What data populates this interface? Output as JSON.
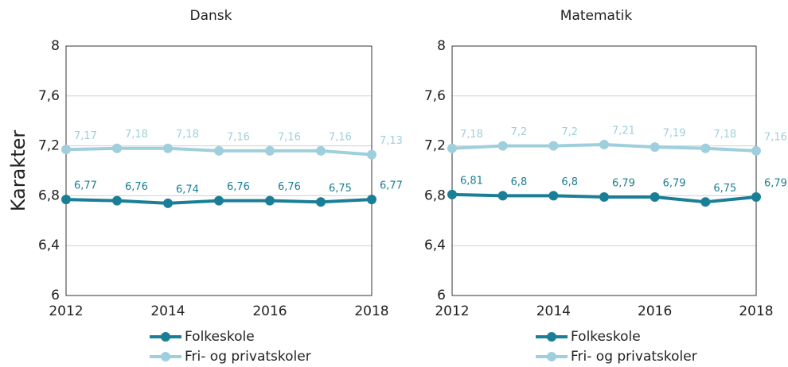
{
  "chart_data": [
    {
      "type": "line",
      "title": "Dansk",
      "ylabel": "Karakter",
      "x": [
        2012,
        2013,
        2014,
        2015,
        2016,
        2017,
        2018
      ],
      "xlim": [
        2012,
        2018
      ],
      "xticks": [
        2012,
        2014,
        2016,
        2018
      ],
      "ylim": [
        6,
        8
      ],
      "yticks": [
        6,
        {
          "value": 6.4,
          "label": "6,4"
        },
        {
          "value": 6.8,
          "label": "6,8"
        },
        {
          "value": 7.2,
          "label": "7,2"
        },
        {
          "value": 7.6,
          "label": "7,6"
        },
        8
      ],
      "grid": true,
      "series": [
        {
          "name": "Folkeskole",
          "color": "#1a7f96",
          "values": [
            6.77,
            6.76,
            6.74,
            6.76,
            6.76,
            6.75,
            6.77
          ],
          "value_labels": [
            "6,77",
            "6,76",
            "6,74",
            "6,76",
            "6,76",
            "6,75",
            "6,77"
          ]
        },
        {
          "name": "Fri- og privatskoler",
          "color": "#9fcfdc",
          "values": [
            7.17,
            7.18,
            7.18,
            7.16,
            7.16,
            7.16,
            7.13
          ],
          "value_labels": [
            "7,17",
            "7,18",
            "7,18",
            "7,16",
            "7,16",
            "7,16",
            "7,13"
          ]
        }
      ]
    },
    {
      "type": "line",
      "title": "Matematik",
      "x": [
        2012,
        2013,
        2014,
        2015,
        2016,
        2017,
        2018
      ],
      "xlim": [
        2012,
        2018
      ],
      "xticks": [
        2012,
        2014,
        2016,
        2018
      ],
      "ylim": [
        6,
        8
      ],
      "yticks": [
        6,
        {
          "value": 6.4,
          "label": "6,4"
        },
        {
          "value": 6.8,
          "label": "6,8"
        },
        {
          "value": 7.2,
          "label": "7,2"
        },
        {
          "value": 7.6,
          "label": "7,6"
        },
        8
      ],
      "grid": true,
      "series": [
        {
          "name": "Folkeskole",
          "color": "#1a7f96",
          "values": [
            6.81,
            6.8,
            6.8,
            6.79,
            6.79,
            6.75,
            6.79
          ],
          "value_labels": [
            "6,81",
            "6,8",
            "6,8",
            "6,79",
            "6,79",
            "6,75",
            "6,79"
          ]
        },
        {
          "name": "Fri- og privatskoler",
          "color": "#9fcfdc",
          "values": [
            7.18,
            7.2,
            7.2,
            7.21,
            7.19,
            7.18,
            7.16
          ],
          "value_labels": [
            "7,18",
            "7,2",
            "7,2",
            "7,21",
            "7,19",
            "7,18",
            "7,16"
          ]
        }
      ]
    }
  ]
}
